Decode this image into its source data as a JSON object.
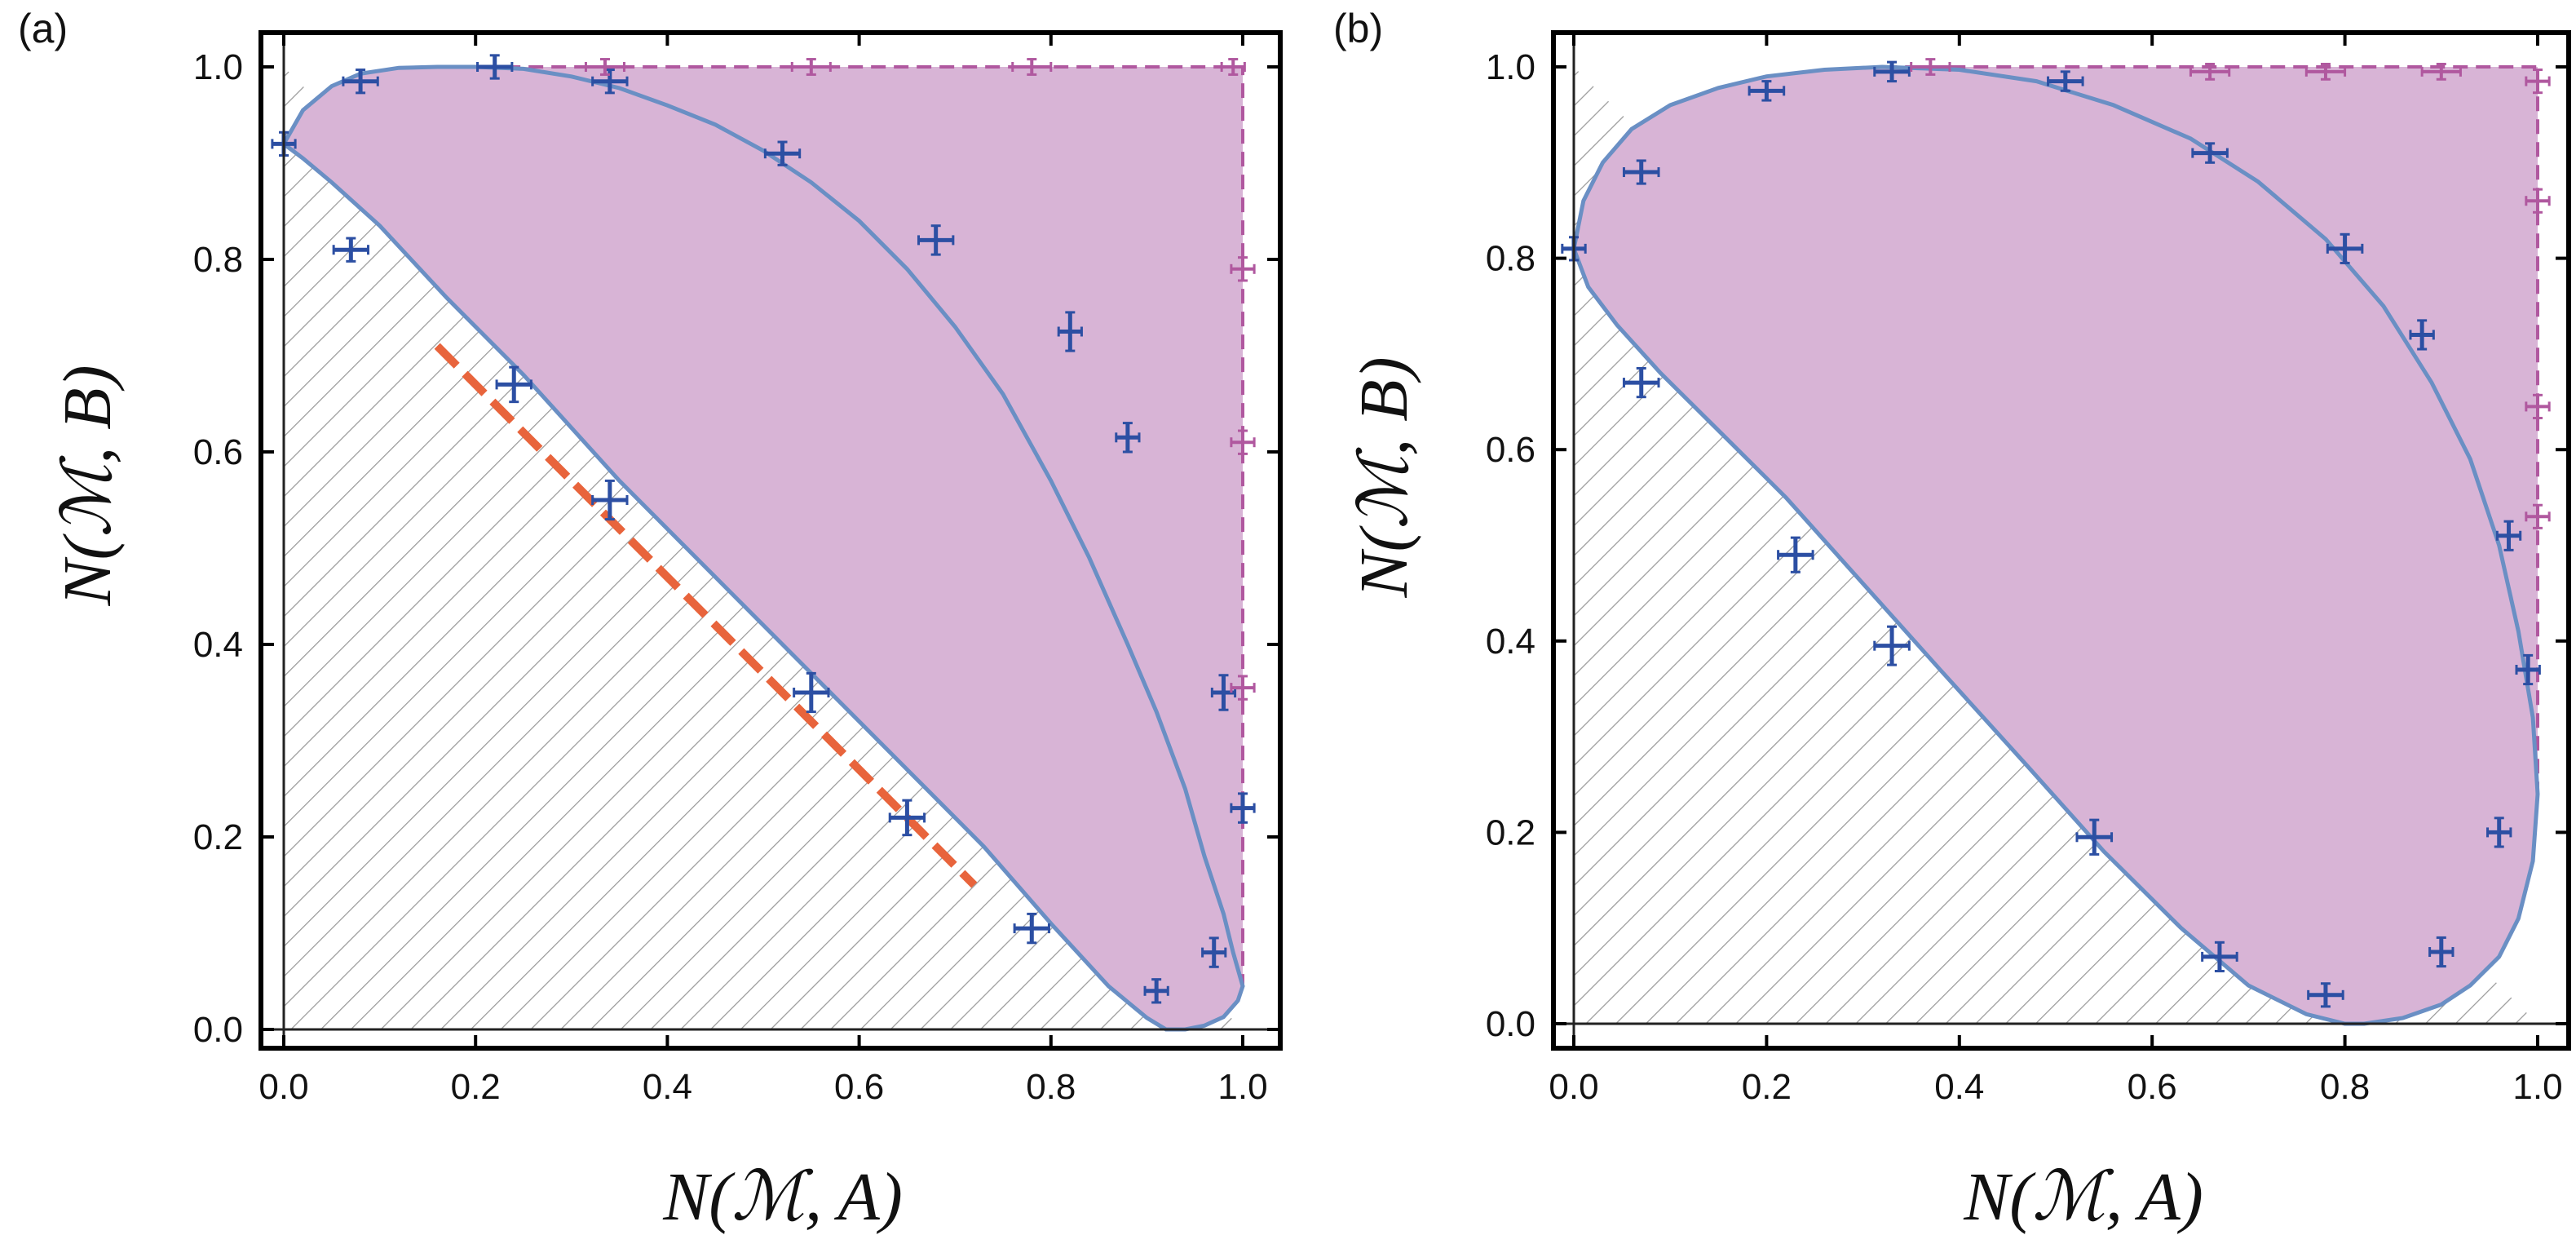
{
  "chart_data": [
    {
      "type": "scatter",
      "panel_label": "(a)",
      "xlabel": "N(ℳ, A)",
      "ylabel": "N(ℳ, B)",
      "xlim": [
        0.0,
        1.0
      ],
      "ylim": [
        0.0,
        1.0
      ],
      "xticks": [
        "0.0",
        "0.2",
        "0.4",
        "0.6",
        "0.8",
        "1.0"
      ],
      "yticks": [
        "0.0",
        "0.2",
        "0.4",
        "0.6",
        "0.8",
        "1.0"
      ],
      "colors": {
        "region_fill": "#d8b4d6",
        "boundary": "#6a8fc4",
        "blue_points": "#2c4fa3",
        "magenta_points": "#b0589f",
        "dashed_line": "#e8643c",
        "hatch": "#9a9a9a"
      },
      "boundary_curve": {
        "x": [
          0.0,
          0.02,
          0.05,
          0.08,
          0.12,
          0.16,
          0.2,
          0.25,
          0.3,
          0.35,
          0.4,
          0.45,
          0.5,
          0.55,
          0.6,
          0.65,
          0.7,
          0.75,
          0.8,
          0.84,
          0.88,
          0.91,
          0.94,
          0.96,
          0.98,
          0.99,
          1.0,
          0.995,
          0.98,
          0.96,
          0.94,
          0.92,
          0.9,
          0.86,
          0.8,
          0.73,
          0.65,
          0.55,
          0.45,
          0.35,
          0.25,
          0.17,
          0.1,
          0.05,
          0.02,
          0.0
        ],
        "y": [
          0.92,
          0.955,
          0.98,
          0.993,
          0.999,
          1.0,
          1.0,
          0.998,
          0.99,
          0.978,
          0.96,
          0.94,
          0.913,
          0.88,
          0.84,
          0.79,
          0.73,
          0.66,
          0.57,
          0.49,
          0.4,
          0.33,
          0.25,
          0.18,
          0.12,
          0.08,
          0.045,
          0.03,
          0.013,
          0.004,
          0.0,
          0.0,
          0.012,
          0.045,
          0.11,
          0.19,
          0.27,
          0.37,
          0.47,
          0.57,
          0.68,
          0.76,
          0.835,
          0.88,
          0.905,
          0.92
        ]
      },
      "dashed_line": {
        "x": [
          0.16,
          0.72
        ],
        "y": [
          0.71,
          0.15
        ]
      },
      "region_corner": [
        1.0,
        1.0
      ],
      "series": [
        {
          "name": "blue",
          "x": [
            0.0,
            0.08,
            0.07,
            0.22,
            0.34,
            0.52,
            0.68,
            0.82,
            0.88,
            0.24,
            0.34,
            0.55,
            0.65,
            0.78,
            0.91,
            0.97,
            0.98,
            1.0
          ],
          "y": [
            0.92,
            0.985,
            0.81,
            1.0,
            0.985,
            0.91,
            0.82,
            0.725,
            0.615,
            0.67,
            0.55,
            0.35,
            0.22,
            0.105,
            0.04,
            0.08,
            0.35,
            0.23
          ],
          "xerr": [
            0.012,
            0.018,
            0.018,
            0.018,
            0.018,
            0.018,
            0.018,
            0.012,
            0.012,
            0.018,
            0.018,
            0.018,
            0.018,
            0.018,
            0.012,
            0.012,
            0.012,
            0.012
          ],
          "yerr": [
            0.012,
            0.012,
            0.012,
            0.012,
            0.012,
            0.012,
            0.015,
            0.02,
            0.015,
            0.018,
            0.02,
            0.02,
            0.018,
            0.015,
            0.012,
            0.015,
            0.018,
            0.015
          ]
        },
        {
          "name": "magenta",
          "x": [
            0.335,
            0.55,
            0.78,
            0.99,
            1.0,
            1.0,
            1.0
          ],
          "y": [
            1.0,
            1.0,
            1.0,
            1.0,
            0.79,
            0.61,
            0.355
          ],
          "xerr": [
            0.02,
            0.02,
            0.02,
            0.012,
            0.012,
            0.012,
            0.012
          ],
          "yerr": [
            0.008,
            0.008,
            0.008,
            0.008,
            0.012,
            0.012,
            0.012
          ]
        }
      ]
    },
    {
      "type": "scatter",
      "panel_label": "(b)",
      "xlabel": "N(ℳ, A)",
      "ylabel": "N(ℳ, B)",
      "xlim": [
        0.0,
        1.0
      ],
      "ylim": [
        0.0,
        1.0
      ],
      "xticks": [
        "0.0",
        "0.2",
        "0.4",
        "0.6",
        "0.8",
        "1.0"
      ],
      "yticks": [
        "0.0",
        "0.2",
        "0.4",
        "0.6",
        "0.8",
        "1.0"
      ],
      "colors": {
        "region_fill": "#d8b4d6",
        "boundary": "#6a8fc4",
        "blue_points": "#2c4fa3",
        "magenta_points": "#b0589f",
        "hatch": "#9a9a9a"
      },
      "boundary_curve": {
        "x": [
          0.0,
          0.01,
          0.03,
          0.06,
          0.1,
          0.15,
          0.2,
          0.26,
          0.32,
          0.4,
          0.48,
          0.56,
          0.64,
          0.71,
          0.78,
          0.84,
          0.89,
          0.93,
          0.96,
          0.98,
          0.995,
          1.0,
          0.995,
          0.98,
          0.96,
          0.93,
          0.9,
          0.86,
          0.82,
          0.8,
          0.76,
          0.7,
          0.63,
          0.55,
          0.47,
          0.38,
          0.3,
          0.22,
          0.15,
          0.09,
          0.045,
          0.015,
          0.0
        ],
        "y": [
          0.81,
          0.86,
          0.9,
          0.935,
          0.96,
          0.978,
          0.99,
          0.997,
          1.0,
          0.997,
          0.985,
          0.96,
          0.925,
          0.88,
          0.82,
          0.75,
          0.67,
          0.59,
          0.5,
          0.41,
          0.32,
          0.24,
          0.17,
          0.11,
          0.07,
          0.04,
          0.02,
          0.006,
          0.0,
          0.0,
          0.01,
          0.04,
          0.1,
          0.18,
          0.27,
          0.37,
          0.46,
          0.55,
          0.62,
          0.68,
          0.73,
          0.77,
          0.81
        ]
      },
      "region_corner": [
        1.0,
        1.0
      ],
      "series": [
        {
          "name": "blue",
          "x": [
            0.0,
            0.07,
            0.2,
            0.33,
            0.51,
            0.66,
            0.8,
            0.88,
            0.97,
            0.99,
            0.07,
            0.23,
            0.33,
            0.54,
            0.67,
            0.78,
            0.9,
            0.96
          ],
          "y": [
            0.81,
            0.89,
            0.975,
            0.995,
            0.985,
            0.91,
            0.81,
            0.72,
            0.51,
            0.37,
            0.67,
            0.49,
            0.395,
            0.195,
            0.07,
            0.03,
            0.075,
            0.2
          ],
          "xerr": [
            0.012,
            0.018,
            0.018,
            0.018,
            0.018,
            0.018,
            0.018,
            0.012,
            0.012,
            0.012,
            0.018,
            0.018,
            0.018,
            0.018,
            0.018,
            0.018,
            0.012,
            0.012
          ],
          "yerr": [
            0.012,
            0.012,
            0.01,
            0.01,
            0.01,
            0.01,
            0.015,
            0.015,
            0.015,
            0.015,
            0.015,
            0.018,
            0.02,
            0.018,
            0.015,
            0.012,
            0.015,
            0.015
          ]
        },
        {
          "name": "magenta",
          "x": [
            0.37,
            0.66,
            0.78,
            0.9,
            1.0,
            1.0,
            1.0,
            1.0
          ],
          "y": [
            1.0,
            0.995,
            0.995,
            0.995,
            0.985,
            0.86,
            0.645,
            0.53
          ],
          "xerr": [
            0.02,
            0.02,
            0.02,
            0.02,
            0.012,
            0.012,
            0.012,
            0.012
          ],
          "yerr": [
            0.008,
            0.008,
            0.008,
            0.008,
            0.012,
            0.012,
            0.012,
            0.012
          ]
        }
      ]
    }
  ]
}
